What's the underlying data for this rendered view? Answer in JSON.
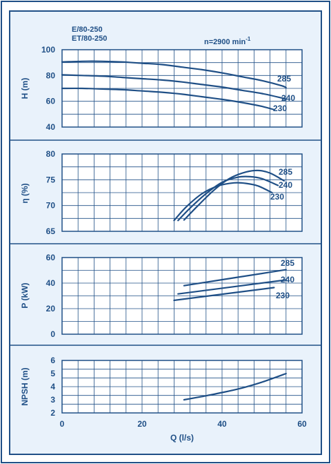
{
  "colors": {
    "ink": "#1f4f86",
    "panel": "#e9f2fb",
    "background": "#ffffff"
  },
  "header": {
    "models": [
      "E/80-250",
      "ET/80-250"
    ],
    "speed_label": "n=2900 min",
    "speed_sup": "-1"
  },
  "chart_data": [
    {
      "type": "line",
      "ylabel": "H (m)",
      "xlim": [
        0,
        60
      ],
      "ylim": [
        40,
        100
      ],
      "yticks": [
        40,
        60,
        80,
        100
      ],
      "grid": true,
      "series": [
        {
          "name": "285",
          "x": [
            0,
            5,
            10,
            15,
            20,
            25,
            30,
            35,
            40,
            45,
            50,
            55,
            56
          ],
          "y": [
            90.5,
            91,
            91,
            90.5,
            89.5,
            88.5,
            86.5,
            84.5,
            82,
            79,
            76,
            72,
            70.5
          ]
        },
        {
          "name": "240",
          "x": [
            0,
            5,
            10,
            15,
            20,
            25,
            30,
            35,
            40,
            45,
            50,
            55,
            56
          ],
          "y": [
            80.5,
            80,
            79.5,
            78.5,
            77.5,
            76.5,
            75,
            73,
            71,
            68.5,
            66,
            62.5,
            61.5
          ]
        },
        {
          "name": "230",
          "x": [
            0,
            5,
            10,
            15,
            20,
            25,
            30,
            35,
            40,
            45,
            50,
            53
          ],
          "y": [
            70,
            70,
            69.5,
            69,
            68,
            67,
            65.5,
            63.5,
            61.5,
            59,
            56,
            53.5
          ]
        }
      ],
      "series_labels": [
        "285",
        "240",
        "230"
      ]
    },
    {
      "type": "line",
      "ylabel": "η (%)",
      "xlim": [
        0,
        60
      ],
      "ylim": [
        65,
        80
      ],
      "yticks": [
        65,
        70,
        75,
        80
      ],
      "grid": true,
      "series": [
        {
          "name": "285",
          "x": [
            30.5,
            34,
            38,
            42,
            46,
            49,
            52,
            55.5
          ],
          "y": [
            67.2,
            70,
            73,
            75.3,
            76.5,
            76.8,
            76.3,
            74.8
          ]
        },
        {
          "name": "240",
          "x": [
            29,
            32,
            36,
            40,
            44,
            47,
            50,
            54
          ],
          "y": [
            67.1,
            69.5,
            72.3,
            74.5,
            75.5,
            75.6,
            75.2,
            73.9
          ]
        },
        {
          "name": "230",
          "x": [
            28,
            31,
            35,
            39,
            43,
            46,
            49,
            52.5
          ],
          "y": [
            67.1,
            69.7,
            72.3,
            73.8,
            74.4,
            74.3,
            73.8,
            72.5
          ]
        }
      ],
      "series_labels": [
        "285",
        "240",
        "230"
      ]
    },
    {
      "type": "line",
      "ylabel": "P (kW)",
      "xlim": [
        0,
        60
      ],
      "ylim": [
        0,
        60
      ],
      "yticks": [
        0,
        20,
        40,
        60
      ],
      "grid": true,
      "series": [
        {
          "name": "285",
          "x": [
            30.5,
            56
          ],
          "y": [
            38,
            50.5
          ]
        },
        {
          "name": "240",
          "x": [
            29,
            56
          ],
          "y": [
            31.5,
            42.5
          ]
        },
        {
          "name": "230",
          "x": [
            28,
            53
          ],
          "y": [
            26.5,
            36.5
          ]
        }
      ],
      "series_labels": [
        "285",
        "240",
        "230"
      ]
    },
    {
      "type": "line",
      "xlabel": "Q (l/s)",
      "ylabel": "NPSH (m)",
      "xlim": [
        0,
        60
      ],
      "ylim": [
        2,
        6
      ],
      "yticks": [
        2,
        3,
        4,
        5,
        6
      ],
      "xticks": [
        0,
        20,
        40,
        60
      ],
      "grid": true,
      "series": [
        {
          "x": [
            30.5,
            35,
            40,
            45,
            50,
            56
          ],
          "y": [
            3.0,
            3.25,
            3.55,
            3.9,
            4.35,
            5.0
          ]
        }
      ]
    }
  ]
}
